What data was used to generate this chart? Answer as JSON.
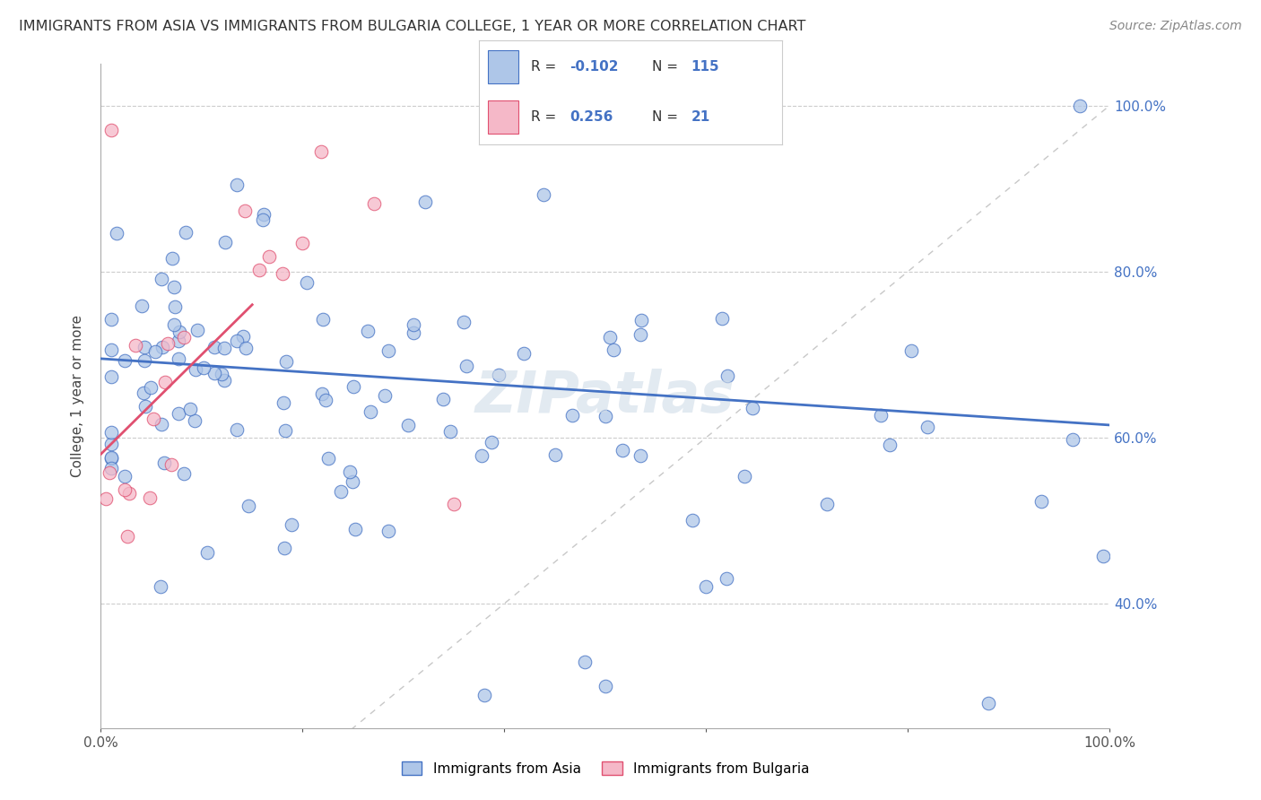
{
  "title": "IMMIGRANTS FROM ASIA VS IMMIGRANTS FROM BULGARIA COLLEGE, 1 YEAR OR MORE CORRELATION CHART",
  "source": "Source: ZipAtlas.com",
  "ylabel": "College, 1 year or more",
  "legend_label_asia": "Immigrants from Asia",
  "legend_label_bulgaria": "Immigrants from Bulgaria",
  "R_asia": -0.102,
  "N_asia": 115,
  "R_bulgaria": 0.256,
  "N_bulgaria": 21,
  "color_asia_fill": "#aec6e8",
  "color_asia_edge": "#4472c4",
  "color_bulgaria_fill": "#f5b8c8",
  "color_bulgaria_edge": "#e05070",
  "color_line_asia": "#4472c4",
  "color_line_bulgaria": "#e05070",
  "color_diag": "#c8c8c8",
  "background": "#ffffff",
  "grid_color": "#cccccc",
  "right_axis_color": "#4472c4",
  "legend_box_color": "#aec6e8",
  "legend_box_color2": "#f5b8c8",
  "watermark": "ZIPatlas",
  "watermark_color": "#d0dce8",
  "xlim": [
    0.0,
    1.0
  ],
  "ylim_low": 0.25,
  "ylim_high": 1.05,
  "yticks": [
    0.4,
    0.6,
    0.8,
    1.0
  ],
  "ytick_labels": [
    "40.0%",
    "60.0%",
    "80.0%",
    "100.0%"
  ],
  "xtick_labels_show": [
    "0.0%",
    "100.0%"
  ],
  "asia_line_y0": 0.695,
  "asia_line_y1": 0.615,
  "bulgaria_line_x0": 0.0,
  "bulgaria_line_x1": 0.15,
  "bulgaria_line_y0": 0.58,
  "bulgaria_line_y1": 0.76,
  "legend_R_asia_color": "#e05070",
  "legend_R_bulgaria_color": "#4472c4",
  "legend_N_color": "#4472c4"
}
